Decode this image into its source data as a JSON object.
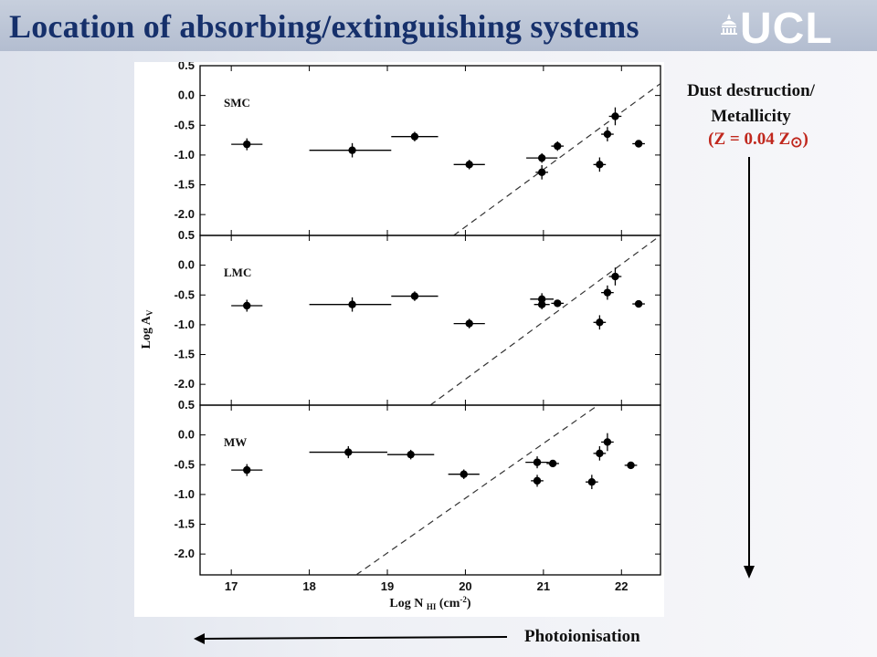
{
  "slide": {
    "title": "Location of absorbing/extinguishing systems",
    "logo_text": "UCL"
  },
  "annotations": {
    "dust_line1": "Dust destruction/",
    "dust_line2": "Metallicity",
    "metallicity_prefix": "(Z = 0.04 Z",
    "metallicity_symbol": "⊙",
    "metallicity_suffix": ")",
    "photoionisation": "Photoionisation"
  },
  "colors": {
    "title": "#16306b",
    "metallicity": "#c0281e",
    "header_band": "#b9c2d4"
  },
  "chart_data": {
    "type": "scatter",
    "xlabel": "Log N",
    "xlabel_sub": "HI",
    "xlabel_units": "(cm",
    "xlabel_sup": "-2",
    "xlabel_close": ")",
    "ylabel": "Log A",
    "ylabel_sub": "V",
    "xlim": [
      16.6,
      22.5
    ],
    "ylim": [
      -2.35,
      0.5
    ],
    "xticks": [
      "17",
      "18",
      "19",
      "20",
      "21",
      "22"
    ],
    "yticks": [
      "0.5",
      "0.0",
      "-0.5",
      "-1.0",
      "-1.5",
      "-2.0"
    ],
    "panels": [
      {
        "label": "SMC",
        "dashed_line": [
          [
            19.85,
            -2.35
          ],
          [
            22.5,
            0.2
          ]
        ],
        "points": [
          {
            "x": 17.2,
            "y": -0.82,
            "xerr": [
              0.2,
              0.2
            ],
            "yerr": 0.1
          },
          {
            "x": 18.55,
            "y": -0.92,
            "xerr": [
              0.55,
              0.5
            ],
            "yerr": 0.12
          },
          {
            "x": 19.35,
            "y": -0.69,
            "xerr": [
              0.3,
              0.3
            ],
            "yerr": 0.08
          },
          {
            "x": 20.05,
            "y": -1.16,
            "xerr": [
              0.2,
              0.2
            ],
            "yerr": 0.08
          },
          {
            "x": 20.98,
            "y": -1.05,
            "xerr": [
              0.2,
              0.2
            ],
            "yerr": 0.08
          },
          {
            "x": 20.98,
            "y": -1.29,
            "xerr": [
              0.08,
              0.08
            ],
            "yerr": 0.12
          },
          {
            "x": 21.18,
            "y": -0.85,
            "xerr": [
              0.08,
              0.08
            ],
            "yerr": 0.08
          },
          {
            "x": 21.72,
            "y": -1.16,
            "xerr": [
              0.08,
              0.08
            ],
            "yerr": 0.12
          },
          {
            "x": 21.82,
            "y": -0.65,
            "xerr": [
              0.08,
              0.08
            ],
            "yerr": 0.12
          },
          {
            "x": 21.92,
            "y": -0.35,
            "xerr": [
              0.08,
              0.08
            ],
            "yerr": 0.15
          },
          {
            "x": 22.22,
            "y": -0.81,
            "xerr": [
              0.08,
              0.08
            ],
            "yerr": 0.05
          }
        ]
      },
      {
        "label": "LMC",
        "dashed_line": [
          [
            19.55,
            -2.35
          ],
          [
            22.5,
            0.5
          ]
        ],
        "points": [
          {
            "x": 17.2,
            "y": -0.68,
            "xerr": [
              0.2,
              0.2
            ],
            "yerr": 0.1
          },
          {
            "x": 18.55,
            "y": -0.66,
            "xerr": [
              0.55,
              0.5
            ],
            "yerr": 0.12
          },
          {
            "x": 19.35,
            "y": -0.52,
            "xerr": [
              0.3,
              0.3
            ],
            "yerr": 0.08
          },
          {
            "x": 20.05,
            "y": -0.98,
            "xerr": [
              0.2,
              0.2
            ],
            "yerr": 0.08
          },
          {
            "x": 20.98,
            "y": -0.57,
            "xerr": [
              0.15,
              0.15
            ],
            "yerr": 0.1
          },
          {
            "x": 20.98,
            "y": -0.66,
            "xerr": [
              0.1,
              0.1
            ],
            "yerr": 0.08
          },
          {
            "x": 21.18,
            "y": -0.64,
            "xerr": [
              0.08,
              0.08
            ],
            "yerr": 0.05
          },
          {
            "x": 21.72,
            "y": -0.96,
            "xerr": [
              0.08,
              0.08
            ],
            "yerr": 0.12
          },
          {
            "x": 21.82,
            "y": -0.46,
            "xerr": [
              0.08,
              0.08
            ],
            "yerr": 0.12
          },
          {
            "x": 21.92,
            "y": -0.19,
            "xerr": [
              0.08,
              0.08
            ],
            "yerr": 0.15
          },
          {
            "x": 22.22,
            "y": -0.65,
            "xerr": [
              0.08,
              0.08
            ],
            "yerr": 0.05
          }
        ]
      },
      {
        "label": "MW",
        "dashed_line": [
          [
            18.6,
            -2.35
          ],
          [
            21.7,
            0.5
          ]
        ],
        "points": [
          {
            "x": 17.2,
            "y": -0.59,
            "xerr": [
              0.2,
              0.2
            ],
            "yerr": 0.1
          },
          {
            "x": 18.5,
            "y": -0.29,
            "xerr": [
              0.5,
              0.5
            ],
            "yerr": 0.1
          },
          {
            "x": 19.3,
            "y": -0.33,
            "xerr": [
              0.3,
              0.3
            ],
            "yerr": 0.08
          },
          {
            "x": 19.98,
            "y": -0.66,
            "xerr": [
              0.2,
              0.2
            ],
            "yerr": 0.08
          },
          {
            "x": 20.92,
            "y": -0.46,
            "xerr": [
              0.15,
              0.15
            ],
            "yerr": 0.1
          },
          {
            "x": 20.92,
            "y": -0.77,
            "xerr": [
              0.08,
              0.08
            ],
            "yerr": 0.1
          },
          {
            "x": 21.12,
            "y": -0.48,
            "xerr": [
              0.08,
              0.08
            ],
            "yerr": 0.05
          },
          {
            "x": 21.62,
            "y": -0.79,
            "xerr": [
              0.08,
              0.08
            ],
            "yerr": 0.12
          },
          {
            "x": 21.72,
            "y": -0.31,
            "xerr": [
              0.08,
              0.08
            ],
            "yerr": 0.12
          },
          {
            "x": 21.82,
            "y": -0.12,
            "xerr": [
              0.08,
              0.08
            ],
            "yerr": 0.15
          },
          {
            "x": 22.12,
            "y": -0.51,
            "xerr": [
              0.08,
              0.08
            ],
            "yerr": 0.05
          }
        ]
      }
    ]
  }
}
